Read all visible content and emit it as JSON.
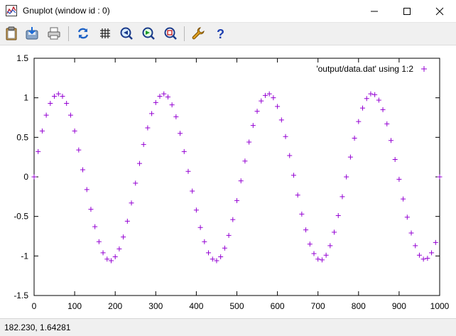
{
  "window": {
    "title": "Gnuplot (window id : 0)"
  },
  "toolbar": {
    "buttons": [
      "copy-clipboard",
      "export",
      "print",
      "replot",
      "grid",
      "zoom-previous",
      "zoom-next",
      "zoom-unzoom",
      "options",
      "help"
    ]
  },
  "status": {
    "coords": "182.230,  1.64281"
  },
  "colors": {
    "points": "#9400d3",
    "toolbar_bg": "#f0f0f0"
  },
  "chart_data": {
    "type": "scatter",
    "title": "",
    "xlabel": "",
    "ylabel": "",
    "xlim": [
      0,
      1000
    ],
    "ylim": [
      -1.5,
      1.5
    ],
    "x_ticks": [
      "0",
      "100",
      "200",
      "300",
      "400",
      "500",
      "600",
      "700",
      "800",
      "900",
      "1000"
    ],
    "y_ticks": [
      "1.5",
      "1",
      "0.5",
      "0",
      "-0.5",
      "-1",
      "-1.5"
    ],
    "grid": false,
    "legend_position": "top-right",
    "series": [
      {
        "name": "'output/data.dat' using 1:2",
        "marker": "+",
        "color": "#9400d3",
        "x": [
          0,
          10,
          20,
          30,
          40,
          50,
          60,
          70,
          80,
          90,
          100,
          110,
          120,
          130,
          140,
          150,
          160,
          170,
          180,
          190,
          200,
          210,
          220,
          230,
          240,
          250,
          260,
          270,
          280,
          290,
          300,
          310,
          320,
          330,
          340,
          350,
          360,
          370,
          380,
          390,
          400,
          410,
          420,
          430,
          440,
          450,
          460,
          470,
          480,
          490,
          500,
          510,
          520,
          530,
          540,
          550,
          560,
          570,
          580,
          590,
          600,
          610,
          620,
          630,
          640,
          650,
          660,
          670,
          680,
          690,
          700,
          710,
          720,
          730,
          740,
          750,
          760,
          770,
          780,
          790,
          800,
          810,
          820,
          830,
          840,
          850,
          860,
          870,
          880,
          890,
          900,
          910,
          920,
          930,
          940,
          950,
          960,
          970,
          980,
          990,
          1000
        ],
        "y": [
          0.0,
          0.32,
          0.58,
          0.78,
          0.93,
          1.02,
          1.05,
          1.02,
          0.93,
          0.78,
          0.58,
          0.34,
          0.09,
          -0.16,
          -0.41,
          -0.63,
          -0.82,
          -0.96,
          -1.04,
          -1.06,
          -1.01,
          -0.91,
          -0.76,
          -0.56,
          -0.33,
          -0.08,
          0.17,
          0.41,
          0.62,
          0.8,
          0.94,
          1.02,
          1.05,
          1.01,
          0.91,
          0.76,
          0.55,
          0.32,
          0.07,
          -0.18,
          -0.42,
          -0.64,
          -0.82,
          -0.96,
          -1.04,
          -1.06,
          -1.01,
          -0.9,
          -0.74,
          -0.54,
          -0.3,
          -0.05,
          0.2,
          0.44,
          0.65,
          0.83,
          0.96,
          1.03,
          1.05,
          1.0,
          0.89,
          0.72,
          0.51,
          0.27,
          0.02,
          -0.23,
          -0.47,
          -0.67,
          -0.85,
          -0.97,
          -1.04,
          -1.05,
          -0.99,
          -0.87,
          -0.7,
          -0.49,
          -0.25,
          0.0,
          0.25,
          0.49,
          0.7,
          0.87,
          0.99,
          1.05,
          1.04,
          0.97,
          0.85,
          0.67,
          0.46,
          0.22,
          -0.03,
          -0.28,
          -0.51,
          -0.71,
          -0.87,
          -0.99,
          -1.04,
          -1.03,
          -0.96,
          -0.83,
          0.0
        ]
      }
    ]
  }
}
